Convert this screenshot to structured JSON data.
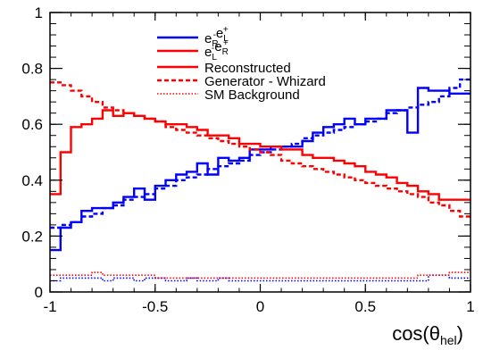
{
  "chart_data": {
    "type": "line",
    "xlabel": "cos(θhel)",
    "xlabel_parts": {
      "base": "cos(θ",
      "sub": "hel",
      "close": ")"
    },
    "ylabel": "",
    "xlim": [
      -1,
      1
    ],
    "ylim": [
      0,
      1
    ],
    "x_ticks": [
      -1,
      -0.5,
      0,
      0.5,
      1
    ],
    "x_tick_labels": [
      "-1",
      "-0.5",
      "0",
      "0.5",
      "1"
    ],
    "y_ticks": [
      0,
      0.2,
      0.4,
      0.6,
      0.8,
      1
    ],
    "y_tick_labels": [
      "0",
      "0.2",
      "0.4",
      "0.6",
      "0.8",
      "1"
    ],
    "grid": false,
    "legend_position": "top-center",
    "legend": [
      {
        "label": "eR-eL+",
        "main": "e",
        "parts": [
          [
            "R",
            "-"
          ],
          [
            "L",
            "+"
          ]
        ],
        "color": "#0000ff",
        "style": "solid"
      },
      {
        "label": "eL-eR+",
        "main": "e",
        "parts": [
          [
            "L",
            "-"
          ],
          [
            "R",
            "+"
          ]
        ],
        "color": "#ff0000",
        "style": "solid"
      },
      {
        "label": "Reconstructed",
        "color": "#ff0000",
        "style": "solid"
      },
      {
        "label": "Generator - Whizard",
        "color": "#ff0000",
        "style": "dashed"
      },
      {
        "label": "SM Background",
        "color": "#ff0000",
        "style": "dotted"
      }
    ],
    "bin_edges": [
      -1.0,
      -0.95,
      -0.9,
      -0.85,
      -0.8,
      -0.75,
      -0.7,
      -0.65,
      -0.6,
      -0.55,
      -0.5,
      -0.45,
      -0.4,
      -0.35,
      -0.3,
      -0.25,
      -0.2,
      -0.15,
      -0.1,
      -0.05,
      0.0,
      0.05,
      0.1,
      0.15,
      0.2,
      0.25,
      0.3,
      0.35,
      0.4,
      0.45,
      0.5,
      0.55,
      0.6,
      0.65,
      0.7,
      0.75,
      0.8,
      0.85,
      0.9,
      0.95,
      1.0
    ],
    "series": [
      {
        "name": "Reconstructed",
        "polarization": "eR-eL+",
        "color": "#0000ff",
        "style": "solid",
        "values": [
          0.15,
          0.23,
          0.25,
          0.29,
          0.3,
          0.3,
          0.32,
          0.34,
          0.37,
          0.33,
          0.38,
          0.4,
          0.42,
          0.43,
          0.46,
          0.42,
          0.48,
          0.47,
          0.48,
          0.51,
          0.51,
          0.52,
          0.52,
          0.52,
          0.54,
          0.57,
          0.59,
          0.6,
          0.62,
          0.6,
          0.62,
          0.62,
          0.65,
          0.65,
          0.57,
          0.73,
          0.72,
          0.72,
          0.71,
          0.71
        ]
      },
      {
        "name": "Generator - Whizard",
        "polarization": "eR-eL+",
        "color": "#0000ff",
        "style": "dashed",
        "values": [
          0.23,
          0.24,
          0.25,
          0.27,
          0.28,
          0.3,
          0.31,
          0.33,
          0.34,
          0.35,
          0.37,
          0.38,
          0.4,
          0.41,
          0.42,
          0.44,
          0.45,
          0.46,
          0.47,
          0.49,
          0.5,
          0.51,
          0.52,
          0.53,
          0.55,
          0.56,
          0.57,
          0.58,
          0.59,
          0.6,
          0.61,
          0.62,
          0.64,
          0.65,
          0.66,
          0.67,
          0.68,
          0.7,
          0.73,
          0.76
        ]
      },
      {
        "name": "SM Background",
        "polarization": "eR-eL+",
        "color": "#0000ff",
        "style": "dotted",
        "values": [
          0.04,
          0.05,
          0.05,
          0.05,
          0.05,
          0.04,
          0.05,
          0.05,
          0.04,
          0.05,
          0.05,
          0.04,
          0.04,
          0.05,
          0.04,
          0.04,
          0.05,
          0.04,
          0.04,
          0.04,
          0.04,
          0.04,
          0.04,
          0.04,
          0.04,
          0.04,
          0.04,
          0.04,
          0.04,
          0.04,
          0.04,
          0.04,
          0.04,
          0.04,
          0.04,
          0.04,
          0.06,
          0.06,
          0.05,
          0.05
        ]
      },
      {
        "name": "Reconstructed",
        "polarization": "eL-eR+",
        "color": "#ff0000",
        "style": "solid",
        "values": [
          0.35,
          0.5,
          0.59,
          0.6,
          0.62,
          0.65,
          0.63,
          0.64,
          0.63,
          0.62,
          0.61,
          0.6,
          0.6,
          0.59,
          0.58,
          0.56,
          0.56,
          0.55,
          0.53,
          0.53,
          0.52,
          0.52,
          0.51,
          0.51,
          0.49,
          0.48,
          0.48,
          0.47,
          0.46,
          0.45,
          0.43,
          0.42,
          0.41,
          0.39,
          0.38,
          0.36,
          0.35,
          0.33,
          0.33,
          0.33
        ]
      },
      {
        "name": "Generator - Whizard",
        "polarization": "eL-eR+",
        "color": "#ff0000",
        "style": "dashed",
        "values": [
          0.75,
          0.74,
          0.72,
          0.7,
          0.68,
          0.66,
          0.65,
          0.64,
          0.63,
          0.62,
          0.61,
          0.59,
          0.58,
          0.57,
          0.56,
          0.55,
          0.54,
          0.53,
          0.52,
          0.51,
          0.5,
          0.49,
          0.47,
          0.46,
          0.45,
          0.44,
          0.43,
          0.42,
          0.41,
          0.4,
          0.39,
          0.38,
          0.37,
          0.36,
          0.35,
          0.34,
          0.32,
          0.31,
          0.29,
          0.27
        ]
      },
      {
        "name": "SM Background",
        "polarization": "eL-eR+",
        "color": "#ff0000",
        "style": "dotted",
        "values": [
          0.06,
          0.06,
          0.06,
          0.06,
          0.07,
          0.06,
          0.06,
          0.06,
          0.06,
          0.06,
          0.05,
          0.05,
          0.05,
          0.05,
          0.05,
          0.05,
          0.05,
          0.05,
          0.05,
          0.05,
          0.05,
          0.05,
          0.05,
          0.05,
          0.05,
          0.05,
          0.05,
          0.05,
          0.05,
          0.05,
          0.05,
          0.05,
          0.05,
          0.05,
          0.05,
          0.06,
          0.06,
          0.06,
          0.07,
          0.07
        ]
      }
    ]
  }
}
